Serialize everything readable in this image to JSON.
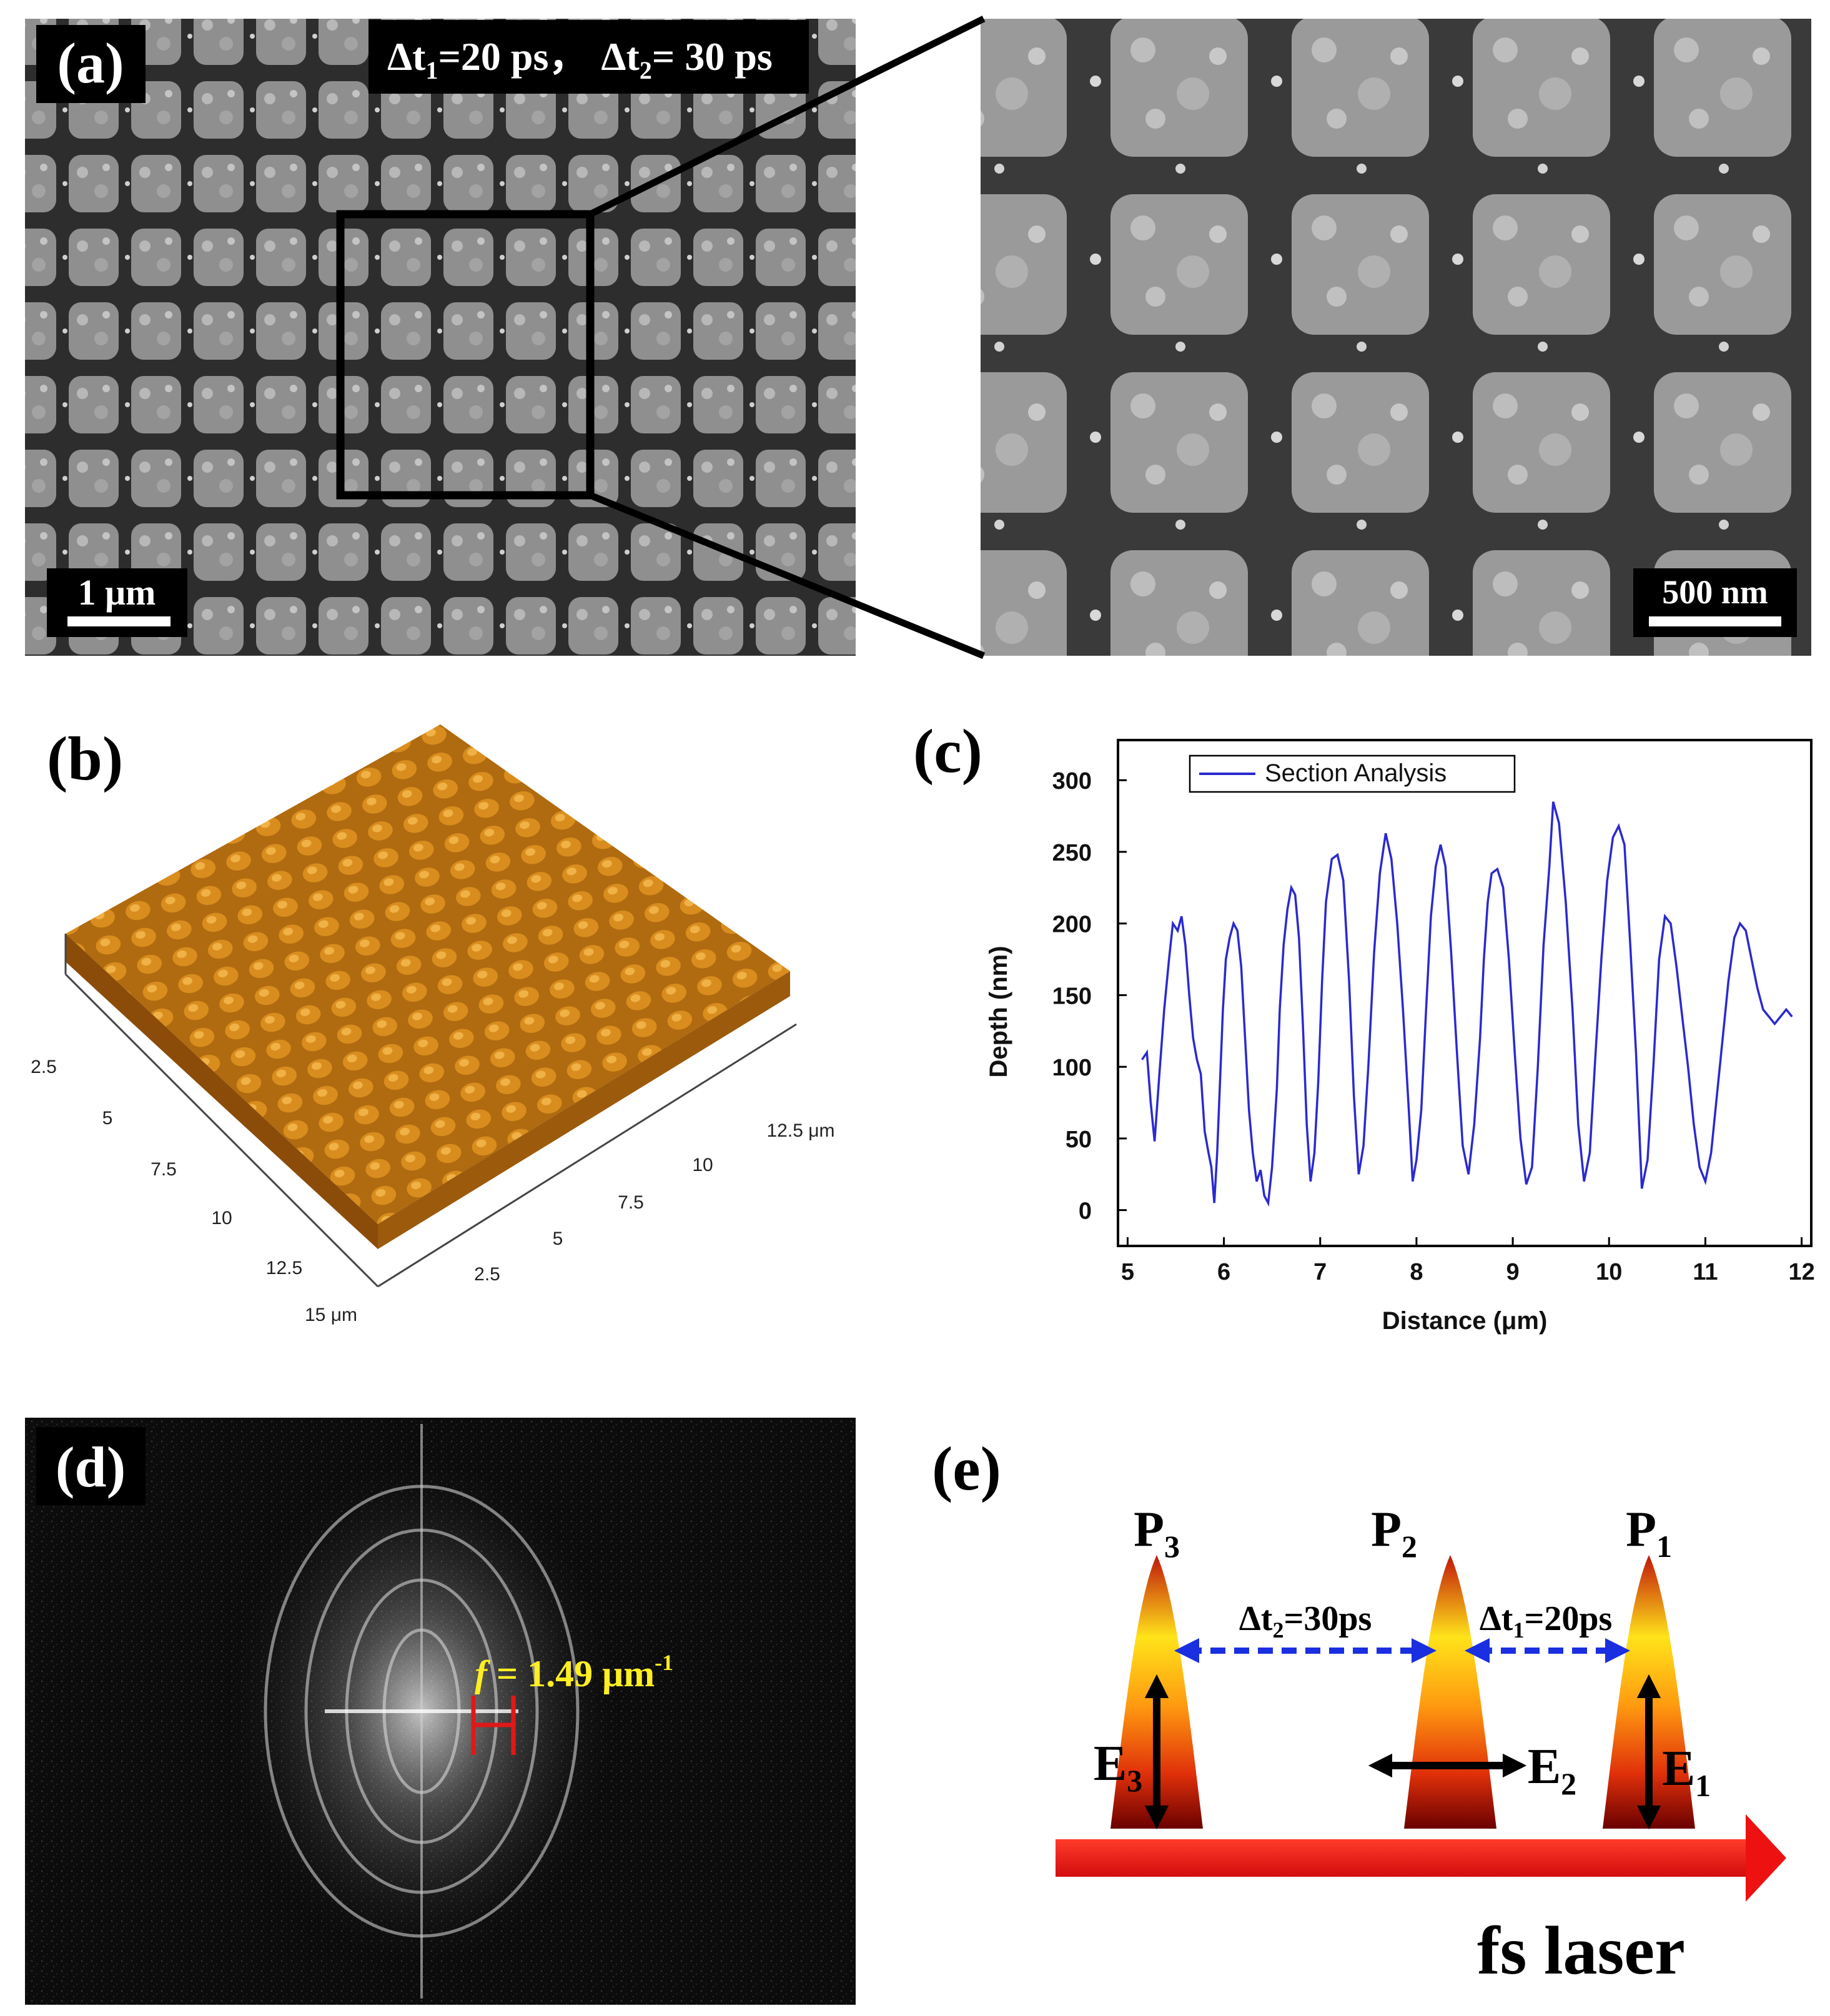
{
  "panels": {
    "a": {
      "label": "(a)",
      "delay_prefix_1": "Δt",
      "delay_sub_1": "1",
      "delay_value_1": "=20 ps，",
      "delay_prefix_2": "Δt",
      "delay_sub_2": "2",
      "delay_value_2": "= 30 ps",
      "scalebar_left": "1 μm",
      "scalebar_right": "500 nm"
    },
    "b": {
      "label": "(b)",
      "axis1_ticks": [
        "2.5",
        "5",
        "7.5",
        "10",
        "12.5",
        "15 μm"
      ],
      "axis2_ticks": [
        "2.5",
        "5",
        "7.5",
        "10",
        "12.5 μm"
      ]
    },
    "c": {
      "label": "(c)"
    },
    "d": {
      "label": "(d)",
      "freq_f": "f",
      "freq_value": " = 1.49 μm",
      "freq_exp": "-1"
    },
    "e": {
      "label": "(e)",
      "pulse_labels": [
        {
          "letter": "P",
          "sub": "3"
        },
        {
          "letter": "P",
          "sub": "2"
        },
        {
          "letter": "P",
          "sub": "1"
        }
      ],
      "field_labels": [
        {
          "letter": "E",
          "sub": "3"
        },
        {
          "letter": "E",
          "sub": "2"
        },
        {
          "letter": "E",
          "sub": "1"
        }
      ],
      "delay_left": {
        "prefix": "Δt",
        "sub": "2",
        "value": "=30ps"
      },
      "delay_right": {
        "prefix": "Δt",
        "sub": "1",
        "value": "=20ps"
      },
      "beam_label": "fs laser",
      "colors": {
        "beam": "#ee1111",
        "dashed": "#1a2fe0",
        "pulse_top": "#c0150a",
        "pulse_mid": "#ffe31a",
        "pulse_base": "#6a0000"
      }
    }
  },
  "chart_data": {
    "type": "line",
    "legend": "Section Analysis",
    "legend_position": "top-left",
    "xlabel": "Distance (μm)",
    "ylabel": "Depth (nm)",
    "xlim": [
      4.9,
      12.1
    ],
    "ylim": [
      -25,
      328
    ],
    "xticks": [
      "5",
      "6",
      "7",
      "8",
      "9",
      "10",
      "11",
      "12"
    ],
    "yticks": [
      "0",
      "50",
      "100",
      "150",
      "200",
      "250",
      "300"
    ],
    "color": "#2a2ad0",
    "series": [
      {
        "name": "Section Analysis",
        "x": [
          5.15,
          5.2,
          5.24,
          5.28,
          5.33,
          5.38,
          5.43,
          5.47,
          5.52,
          5.56,
          5.6,
          5.64,
          5.68,
          5.72,
          5.76,
          5.8,
          5.84,
          5.87,
          5.9,
          5.93,
          5.96,
          5.99,
          6.02,
          6.06,
          6.1,
          6.14,
          6.18,
          6.22,
          6.26,
          6.3,
          6.34,
          6.38,
          6.42,
          6.46,
          6.5,
          6.55,
          6.58,
          6.62,
          6.66,
          6.7,
          6.74,
          6.78,
          6.82,
          6.86,
          6.9,
          6.94,
          6.98,
          7.02,
          7.06,
          7.12,
          7.18,
          7.24,
          7.3,
          7.35,
          7.4,
          7.45,
          7.5,
          7.56,
          7.62,
          7.68,
          7.74,
          7.8,
          7.86,
          7.92,
          7.96,
          8.0,
          8.05,
          8.1,
          8.15,
          8.2,
          8.25,
          8.3,
          8.36,
          8.42,
          8.48,
          8.54,
          8.6,
          8.66,
          8.7,
          8.74,
          8.78,
          8.84,
          8.9,
          8.96,
          9.02,
          9.08,
          9.14,
          9.2,
          9.26,
          9.32,
          9.38,
          9.42,
          9.48,
          9.55,
          9.62,
          9.68,
          9.74,
          9.8,
          9.86,
          9.92,
          9.98,
          10.04,
          10.1,
          10.16,
          10.22,
          10.28,
          10.34,
          10.4,
          10.46,
          10.52,
          10.58,
          10.64,
          10.7,
          10.76,
          10.82,
          10.88,
          10.94,
          11.0,
          11.06,
          11.12,
          11.18,
          11.24,
          11.3,
          11.36,
          11.42,
          11.48,
          11.54,
          11.6,
          11.66,
          11.72,
          11.78,
          11.84,
          11.9
        ],
        "y": [
          105,
          110,
          75,
          48,
          95,
          140,
          175,
          200,
          195,
          205,
          185,
          150,
          120,
          105,
          95,
          55,
          40,
          30,
          5,
          40,
          90,
          140,
          175,
          190,
          200,
          195,
          170,
          120,
          70,
          40,
          20,
          28,
          10,
          5,
          30,
          85,
          140,
          185,
          210,
          225,
          220,
          190,
          130,
          60,
          20,
          40,
          90,
          160,
          215,
          245,
          248,
          230,
          160,
          80,
          25,
          45,
          100,
          180,
          235,
          263,
          245,
          200,
          140,
          70,
          20,
          35,
          70,
          140,
          205,
          240,
          255,
          240,
          180,
          110,
          45,
          25,
          60,
          120,
          175,
          215,
          235,
          238,
          225,
          175,
          110,
          50,
          18,
          30,
          100,
          185,
          240,
          285,
          270,
          215,
          140,
          60,
          20,
          40,
          110,
          175,
          230,
          260,
          268,
          255,
          185,
          110,
          15,
          35,
          100,
          175,
          205,
          200,
          170,
          135,
          100,
          60,
          30,
          20,
          40,
          80,
          120,
          160,
          190,
          200,
          195,
          175,
          155,
          140,
          135,
          130,
          135,
          140,
          135
        ]
      }
    ]
  }
}
